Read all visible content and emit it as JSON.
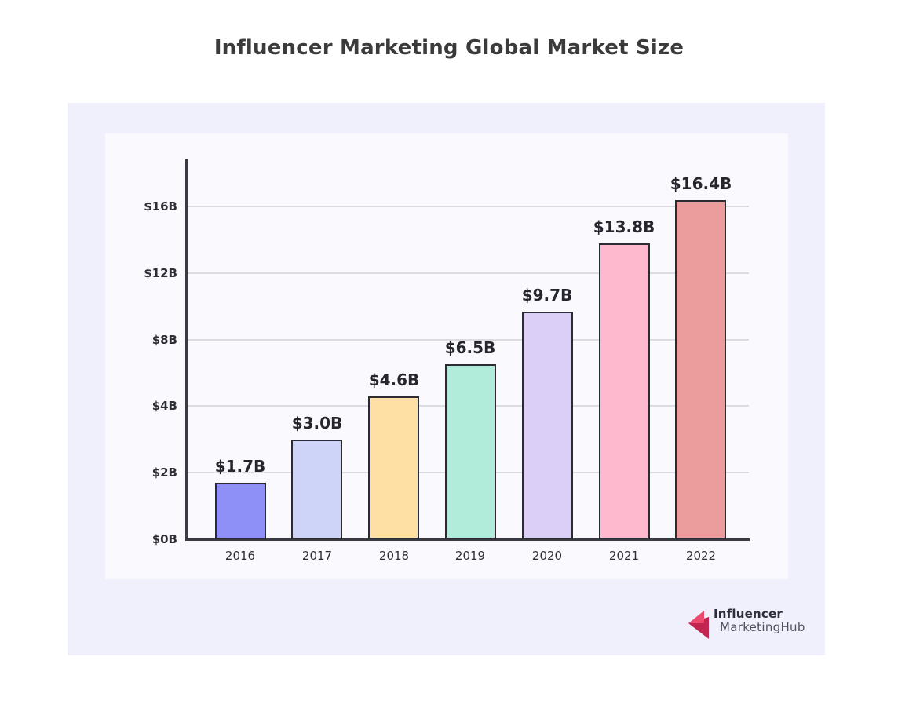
{
  "page": {
    "title": "Influencer Marketing Global Market Size"
  },
  "chart_data": {
    "type": "bar",
    "title": "Influencer Marketing Global Market Size",
    "categories": [
      "2016",
      "2017",
      "2018",
      "2019",
      "2020",
      "2021",
      "2022"
    ],
    "values": [
      1.7,
      3.0,
      4.6,
      6.5,
      9.7,
      13.8,
      16.4
    ],
    "value_labels": [
      "$1.7B",
      "$3.0B",
      "$4.6B",
      "$6.5B",
      "$9.7B",
      "$13.8B",
      "$16.4B"
    ],
    "bar_colors": [
      "#8F8FF8",
      "#CDD4F8",
      "#FEE0A4",
      "#B1ECDA",
      "#DCCFF7",
      "#FFB9CE",
      "#EB9D9E"
    ],
    "bar_border_color": "#2B2B33",
    "y_ticks": [
      0,
      2,
      4,
      8,
      12,
      16
    ],
    "y_tick_labels": [
      "$0B",
      "$2B",
      "$4B",
      "$8B",
      "$12B",
      "$16B"
    ],
    "y_tick_spacing": "equal",
    "ylim": [
      0,
      18.3
    ],
    "xlabel": "",
    "ylabel": "",
    "grid": true,
    "legend": "none",
    "units": "billions USD"
  },
  "branding": {
    "line1": "Influencer",
    "line2": "MarketingHub",
    "logo_colors": {
      "light": "#EB4A6E",
      "dark": "#C32553"
    }
  },
  "colors": {
    "page_background": "#FFFFFF",
    "card_background": "#F0F0FD",
    "panel_background": "#FAFAFE",
    "axis": "#3A3A42",
    "gridline": "#DBDBE1",
    "title_text": "#3B3B3B",
    "value_label_text": "#26262E",
    "tick_label_text": "#2E2E36"
  }
}
